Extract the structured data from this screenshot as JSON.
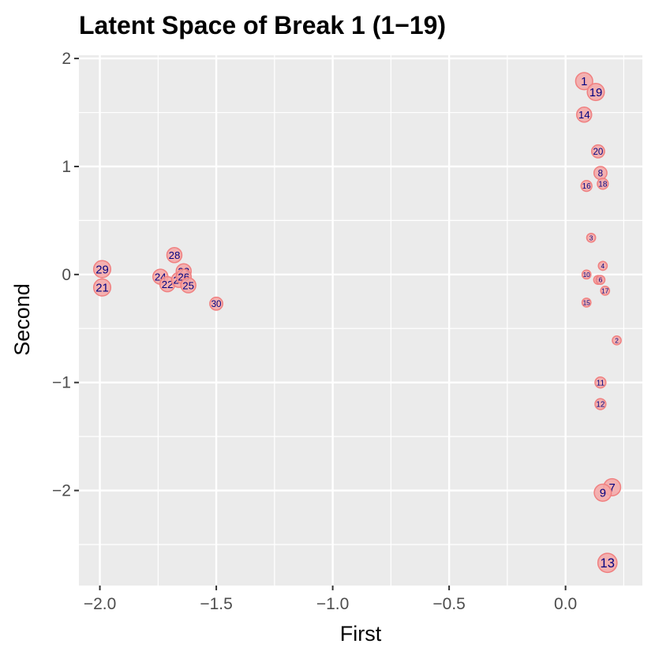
{
  "chart_data": {
    "type": "scatter",
    "title": "Latent Space of Break 1 (1−19)",
    "xlabel": "First",
    "ylabel": "Second",
    "xlim": [
      -2.09,
      0.33
    ],
    "ylim": [
      -2.88,
      2.03
    ],
    "x_ticks": [
      -2.0,
      -1.5,
      -1.0,
      -0.5,
      0.0
    ],
    "x_tick_labels": [
      "−2.0",
      "−1.5",
      "−1.0",
      "−0.5",
      "0.0"
    ],
    "y_ticks": [
      -2,
      -1,
      0,
      1,
      2
    ],
    "y_tick_labels": [
      "−2",
      "−1",
      "0",
      "1",
      "2"
    ],
    "grid": true,
    "legend": "none",
    "colors": {
      "panel": "#ebebeb",
      "grid": "#ffffff",
      "marker_fill": "#f4a6a6",
      "marker_stroke": "#f08080",
      "label": "#000080"
    },
    "points": [
      {
        "label": "1",
        "x": 0.08,
        "y": 1.79,
        "size": 3
      },
      {
        "label": "19",
        "x": 0.13,
        "y": 1.69,
        "size": 3
      },
      {
        "label": "14",
        "x": 0.08,
        "y": 1.48,
        "size": 2.5
      },
      {
        "label": "20",
        "x": 0.14,
        "y": 1.14,
        "size": 2
      },
      {
        "label": "8",
        "x": 0.15,
        "y": 0.94,
        "size": 2
      },
      {
        "label": "16",
        "x": 0.09,
        "y": 0.82,
        "size": 1.5
      },
      {
        "label": "18",
        "x": 0.16,
        "y": 0.84,
        "size": 1.5
      },
      {
        "label": "3",
        "x": 0.11,
        "y": 0.34,
        "size": 1
      },
      {
        "label": "4",
        "x": 0.16,
        "y": 0.08,
        "size": 1
      },
      {
        "label": "10",
        "x": 0.09,
        "y": 0.0,
        "size": 1
      },
      {
        "label": "5",
        "x": 0.14,
        "y": -0.05,
        "size": 1
      },
      {
        "label": "6",
        "x": 0.15,
        "y": -0.05,
        "size": 1
      },
      {
        "label": "17",
        "x": 0.17,
        "y": -0.15,
        "size": 1
      },
      {
        "label": "15",
        "x": 0.09,
        "y": -0.26,
        "size": 1
      },
      {
        "label": "2",
        "x": 0.22,
        "y": -0.61,
        "size": 1
      },
      {
        "label": "11",
        "x": 0.15,
        "y": -1.0,
        "size": 1.5
      },
      {
        "label": "12",
        "x": 0.15,
        "y": -1.2,
        "size": 1.5
      },
      {
        "label": "7",
        "x": 0.2,
        "y": -1.97,
        "size": 3
      },
      {
        "label": "9",
        "x": 0.16,
        "y": -2.02,
        "size": 3
      },
      {
        "label": "13",
        "x": 0.18,
        "y": -2.67,
        "size": 3.5
      },
      {
        "label": "29",
        "x": -1.99,
        "y": 0.05,
        "size": 3
      },
      {
        "label": "21",
        "x": -1.99,
        "y": -0.12,
        "size": 3
      },
      {
        "label": "28",
        "x": -1.68,
        "y": 0.18,
        "size": 2.5
      },
      {
        "label": "24",
        "x": -1.74,
        "y": -0.02,
        "size": 2.5
      },
      {
        "label": "22",
        "x": -1.71,
        "y": -0.09,
        "size": 2.5
      },
      {
        "label": "27",
        "x": -1.66,
        "y": -0.05,
        "size": 2.5
      },
      {
        "label": "23",
        "x": -1.64,
        "y": 0.03,
        "size": 2.5
      },
      {
        "label": "26",
        "x": -1.64,
        "y": -0.02,
        "size": 2.5
      },
      {
        "label": "25",
        "x": -1.62,
        "y": -0.1,
        "size": 2.5
      },
      {
        "label": "30",
        "x": -1.5,
        "y": -0.27,
        "size": 2
      }
    ]
  }
}
